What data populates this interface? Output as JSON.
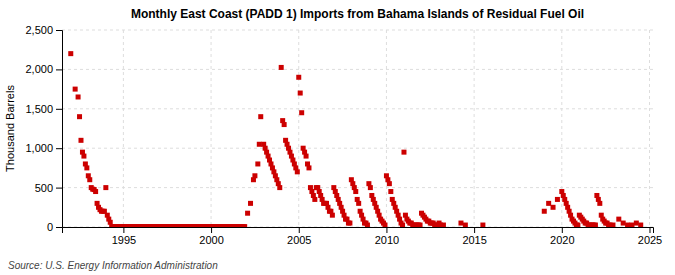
{
  "chart_data": {
    "type": "scatter",
    "title": "Monthly East Coast (PADD 1) Imports from Bahama Islands of Residual Fuel Oil",
    "ylabel": "Thousand Barrels",
    "annotations": [
      "Source: U.S. Energy Information Administration"
    ],
    "color": "#cc0000",
    "marker": "square",
    "grid": true,
    "xlim": [
      1991.5,
      2025.2
    ],
    "ylim": [
      0,
      2500
    ],
    "xticks": [
      1995,
      2000,
      2005,
      2010,
      2015,
      2020,
      2025
    ],
    "yticks": [
      0,
      500,
      {
        "value": 1000,
        "label": "1,000"
      },
      {
        "value": 1500,
        "label": "1,500"
      },
      {
        "value": 2000,
        "label": "2,000"
      },
      {
        "value": 2500,
        "label": "2,500"
      }
    ],
    "x": [
      1992.0,
      1992.25,
      1992.417,
      1992.5,
      1992.583,
      1992.667,
      1992.75,
      1992.833,
      1992.917,
      1993.0,
      1993.083,
      1993.167,
      1993.25,
      1993.333,
      1993.417,
      1993.5,
      1993.583,
      1993.667,
      1993.75,
      1993.833,
      1993.917,
      1994.0,
      1994.083,
      1994.167,
      1994.25,
      1994.333,
      1994.417,
      1994.5,
      1994.583,
      1994.667,
      1994.75,
      1994.833,
      1994.917,
      1995.0,
      1995.083,
      1995.167,
      1995.25,
      1995.333,
      1995.417,
      1995.5,
      1995.583,
      1995.667,
      1995.75,
      1995.833,
      1995.917,
      1996.0,
      1996.083,
      1996.167,
      1996.25,
      1996.333,
      1996.417,
      1996.5,
      1996.583,
      1996.667,
      1996.75,
      1996.833,
      1996.917,
      1997.0,
      1997.083,
      1997.167,
      1997.25,
      1997.333,
      1997.417,
      1997.5,
      1997.583,
      1997.667,
      1997.75,
      1997.833,
      1997.917,
      1998.0,
      1998.083,
      1998.167,
      1998.25,
      1998.333,
      1998.417,
      1998.5,
      1998.583,
      1998.667,
      1998.75,
      1998.833,
      1998.917,
      1999.0,
      1999.083,
      1999.167,
      1999.25,
      1999.333,
      1999.417,
      1999.5,
      1999.583,
      1999.667,
      1999.75,
      1999.833,
      1999.917,
      2000.0,
      2000.083,
      2000.167,
      2000.25,
      2000.333,
      2000.417,
      2000.5,
      2000.583,
      2000.667,
      2000.75,
      2000.833,
      2000.917,
      2001.0,
      2001.083,
      2001.167,
      2001.25,
      2001.333,
      2001.417,
      2001.5,
      2001.583,
      2001.667,
      2001.75,
      2001.833,
      2001.917,
      2002.083,
      2002.25,
      2002.417,
      2002.5,
      2002.667,
      2002.75,
      2002.833,
      2003.0,
      2003.083,
      2003.167,
      2003.25,
      2003.333,
      2003.417,
      2003.5,
      2003.583,
      2003.667,
      2003.75,
      2003.833,
      2003.917,
      2004.0,
      2004.083,
      2004.167,
      2004.25,
      2004.333,
      2004.417,
      2004.5,
      2004.583,
      2004.667,
      2004.75,
      2004.833,
      2004.917,
      2005.0,
      2005.083,
      2005.167,
      2005.25,
      2005.333,
      2005.417,
      2005.5,
      2005.583,
      2005.667,
      2005.75,
      2005.833,
      2005.917,
      2006.0,
      2006.083,
      2006.167,
      2006.25,
      2006.333,
      2006.417,
      2006.5,
      2006.583,
      2006.667,
      2006.75,
      2006.833,
      2006.917,
      2007.0,
      2007.083,
      2007.167,
      2007.25,
      2007.333,
      2007.417,
      2007.5,
      2007.583,
      2007.667,
      2007.75,
      2007.833,
      2007.917,
      2008.0,
      2008.083,
      2008.167,
      2008.25,
      2008.333,
      2008.417,
      2008.5,
      2008.583,
      2008.667,
      2008.75,
      2008.833,
      2008.917,
      2009.0,
      2009.083,
      2009.167,
      2009.25,
      2009.333,
      2009.417,
      2009.5,
      2009.583,
      2009.667,
      2009.75,
      2009.833,
      2009.917,
      2010.0,
      2010.083,
      2010.167,
      2010.25,
      2010.333,
      2010.417,
      2010.5,
      2010.583,
      2010.667,
      2010.75,
      2010.833,
      2010.917,
      2011.0,
      2011.083,
      2011.167,
      2011.25,
      2011.333,
      2011.417,
      2011.5,
      2011.583,
      2011.667,
      2011.75,
      2011.833,
      2011.917,
      2012.0,
      2012.083,
      2012.167,
      2012.25,
      2012.333,
      2012.417,
      2012.5,
      2012.583,
      2012.667,
      2012.75,
      2012.833,
      2012.917,
      2013.0,
      2013.083,
      2013.25,
      2014.25,
      2014.5,
      2015.5,
      2019.0,
      2019.25,
      2019.5,
      2019.75,
      2020.0,
      2020.083,
      2020.167,
      2020.25,
      2020.333,
      2020.417,
      2020.5,
      2020.583,
      2020.667,
      2020.75,
      2020.833,
      2020.917,
      2021.0,
      2021.083,
      2021.167,
      2021.25,
      2021.333,
      2021.417,
      2021.5,
      2021.583,
      2021.667,
      2021.75,
      2021.833,
      2021.917,
      2022.0,
      2022.083,
      2022.167,
      2022.25,
      2022.333,
      2022.417,
      2022.5,
      2022.583,
      2022.667,
      2022.75,
      2022.917,
      2023.25,
      2023.5,
      2023.75,
      2024.0,
      2024.25,
      2024.5
    ],
    "values": [
      2200,
      1750,
      1650,
      1400,
      1100,
      950,
      900,
      800,
      750,
      650,
      600,
      500,
      480,
      475,
      450,
      300,
      250,
      220,
      200,
      200,
      200,
      500,
      150,
      100,
      60,
      5,
      5,
      5,
      5,
      5,
      5,
      5,
      5,
      5,
      5,
      5,
      5,
      5,
      5,
      5,
      5,
      5,
      5,
      5,
      5,
      5,
      5,
      5,
      5,
      5,
      5,
      5,
      5,
      5,
      5,
      5,
      5,
      5,
      5,
      5,
      5,
      5,
      5,
      5,
      5,
      5,
      5,
      5,
      5,
      5,
      5,
      5,
      5,
      5,
      5,
      5,
      5,
      5,
      5,
      5,
      5,
      5,
      5,
      5,
      5,
      5,
      5,
      5,
      5,
      5,
      5,
      5,
      5,
      5,
      5,
      5,
      5,
      5,
      5,
      5,
      5,
      5,
      5,
      5,
      5,
      5,
      5,
      5,
      5,
      5,
      5,
      5,
      5,
      5,
      5,
      5,
      5,
      175,
      300,
      600,
      650,
      800,
      1050,
      1400,
      1050,
      1000,
      950,
      900,
      850,
      800,
      750,
      700,
      650,
      600,
      550,
      500,
      2025,
      1350,
      1300,
      1100,
      1050,
      1000,
      950,
      900,
      850,
      800,
      750,
      700,
      1900,
      1700,
      1450,
      1000,
      950,
      900,
      800,
      750,
      500,
      450,
      400,
      350,
      500,
      500,
      450,
      400,
      350,
      300,
      300,
      300,
      250,
      200,
      200,
      150,
      500,
      450,
      400,
      350,
      300,
      250,
      200,
      150,
      100,
      100,
      50,
      50,
      600,
      550,
      500,
      450,
      350,
      300,
      200,
      150,
      100,
      50,
      50,
      25,
      550,
      500,
      400,
      350,
      300,
      250,
      200,
      150,
      100,
      75,
      50,
      25,
      650,
      600,
      550,
      450,
      350,
      300,
      250,
      200,
      150,
      100,
      50,
      25,
      950,
      150,
      100,
      75,
      50,
      50,
      25,
      25,
      25,
      25,
      25,
      25,
      175,
      150,
      125,
      100,
      75,
      75,
      50,
      50,
      50,
      25,
      25,
      25,
      50,
      25,
      25,
      50,
      25,
      25,
      200,
      300,
      250,
      350,
      450,
      400,
      350,
      300,
      250,
      200,
      150,
      100,
      75,
      50,
      25,
      25,
      150,
      125,
      100,
      75,
      50,
      50,
      25,
      25,
      25,
      25,
      25,
      25,
      400,
      350,
      300,
      150,
      100,
      75,
      50,
      50,
      25,
      25,
      25,
      100,
      50,
      25,
      25,
      50,
      25
    ]
  }
}
